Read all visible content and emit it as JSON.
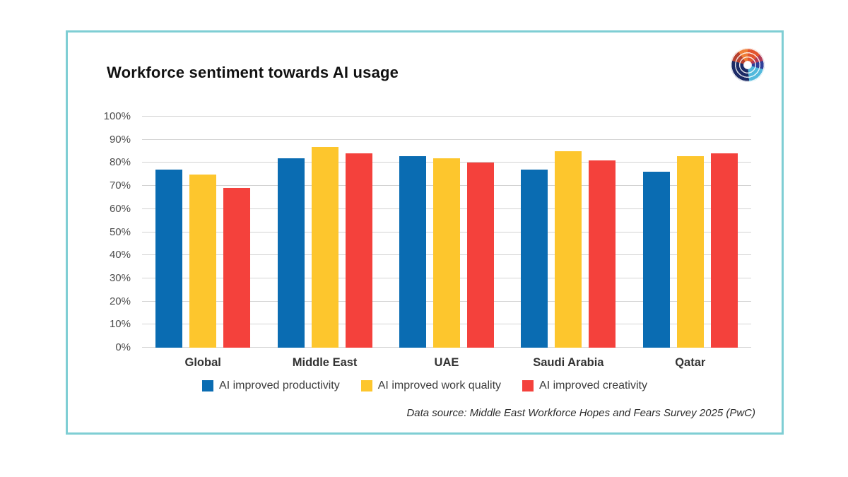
{
  "card": {
    "title": "Workforce sentiment towards AI usage",
    "source_note": "Data source: Middle East Workforce Hopes and Fears Survey 2025 (PwC)"
  },
  "colors": {
    "card_border": "#7fced4",
    "series_blue": "#0a6cb2",
    "series_yellow": "#fdc62d",
    "series_red": "#f4413c",
    "gridline": "#d3d3d3",
    "ytick_label": "#4d4d4d",
    "category_label": "#333333"
  },
  "icons": {
    "brand_logo": "circular-swirl-logo"
  },
  "chart_data": {
    "type": "bar",
    "title": "Workforce sentiment towards AI usage",
    "categories": [
      "Global",
      "Middle East",
      "UAE",
      "Saudi Arabia",
      "Qatar"
    ],
    "series": [
      {
        "name": "AI improved productivity",
        "color": "#0a6cb2",
        "values": [
          77,
          82,
          83,
          77,
          76
        ]
      },
      {
        "name": "AI improved work quality",
        "color": "#fdc62d",
        "values": [
          75,
          87,
          82,
          85,
          83
        ]
      },
      {
        "name": "AI improved creativity",
        "color": "#f4413c",
        "values": [
          69,
          84,
          80,
          81,
          84
        ]
      }
    ],
    "xlabel": "",
    "ylabel": "",
    "ylim": [
      0,
      100
    ],
    "ytick_values": [
      0,
      10,
      20,
      30,
      40,
      50,
      60,
      70,
      80,
      90,
      100
    ],
    "ytick_labels": [
      "0%",
      "10%",
      "20%",
      "30%",
      "40%",
      "50%",
      "60%",
      "70%",
      "80%",
      "90%",
      "100%"
    ],
    "grid": true,
    "legend_position": "bottom",
    "source_note": "Data source: Middle East Workforce Hopes and Fears Survey 2025 (PwC)"
  }
}
